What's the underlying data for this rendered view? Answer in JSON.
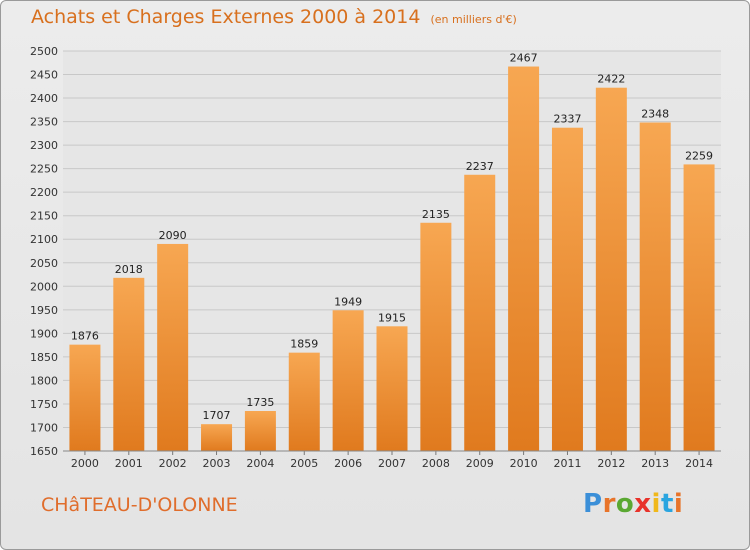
{
  "title": "Achats et Charges Externes 2000 à 2014",
  "subtitle": "(en milliers d'€)",
  "commune": "CHâTEAU-D'OLONNE",
  "brand": {
    "letters": [
      "P",
      "r",
      "o",
      "x",
      "i",
      "t",
      "i"
    ],
    "colors": [
      "#3b8fd8",
      "#e8742a",
      "#5aa832",
      "#e8322a",
      "#f0b81a",
      "#2aa5e0",
      "#e8742a"
    ]
  },
  "colors": {
    "bar_light": "#f7a752",
    "bar_dark": "#e07a1e",
    "grid": "#c8c8c8",
    "plot_bg": "#e6e6e6"
  },
  "chart_data": {
    "type": "bar",
    "categories": [
      "2000",
      "2001",
      "2002",
      "2003",
      "2004",
      "2005",
      "2006",
      "2007",
      "2008",
      "2009",
      "2010",
      "2011",
      "2012",
      "2013",
      "2014"
    ],
    "values": [
      1876,
      2018,
      2090,
      1707,
      1735,
      1859,
      1949,
      1915,
      2135,
      2237,
      2467,
      2337,
      2422,
      2348,
      2259
    ],
    "ylim": [
      1650,
      2500
    ],
    "yticks": [
      1650,
      1700,
      1750,
      1800,
      1850,
      1900,
      1950,
      2000,
      2050,
      2100,
      2150,
      2200,
      2250,
      2300,
      2350,
      2400,
      2450,
      2500
    ],
    "grid": true
  }
}
